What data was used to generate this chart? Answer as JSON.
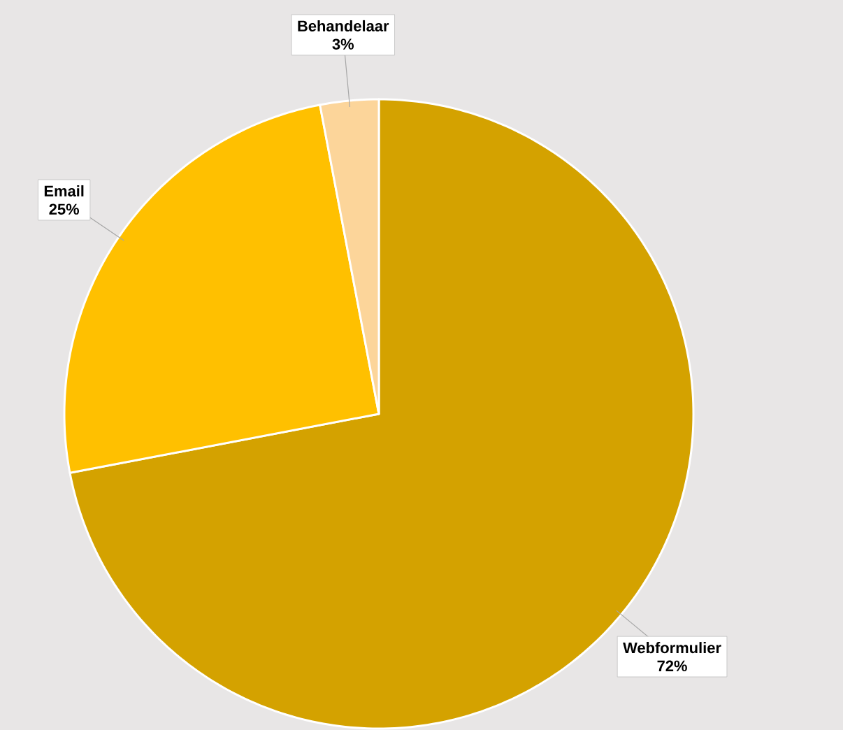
{
  "chart_data": {
    "type": "pie",
    "categories": [
      "Webformulier",
      "Email",
      "Behandelaar"
    ],
    "values": [
      72,
      25,
      3
    ],
    "value_labels": [
      "72%",
      "25%",
      "3%"
    ],
    "colors": [
      "#d4a200",
      "#ffc000",
      "#fcd59a"
    ]
  }
}
